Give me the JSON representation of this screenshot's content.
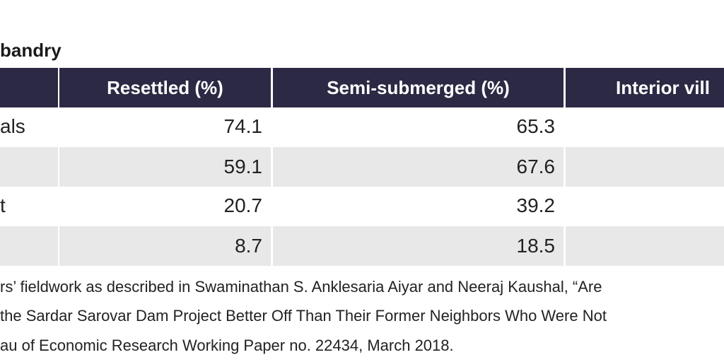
{
  "title": "bandry",
  "table": {
    "header": [
      "Resettled (%)",
      "Semi-submerged (%)",
      "Interior vill"
    ],
    "rows": [
      {
        "label": "als",
        "resettled": 74.1,
        "semi_submerged": 65.3
      },
      {
        "resettled": 59.1,
        "semi_submerged": 67.6
      },
      {
        "label": "t",
        "resettled": 20.7,
        "semi_submerged": 39.2
      },
      {
        "resettled": 8.7,
        "semi_submerged": 18.5
      }
    ]
  },
  "source": [
    "rs’ fieldwork as described in Swaminathan S. Anklesaria Aiyar and Neeraj Kaushal, “Are",
    "the Sardar Sarovar Dam Project Better Off Than Their Former Neighbors Who Were Not",
    "au of Economic Research Working Paper no. 22434, March 2018."
  ]
}
